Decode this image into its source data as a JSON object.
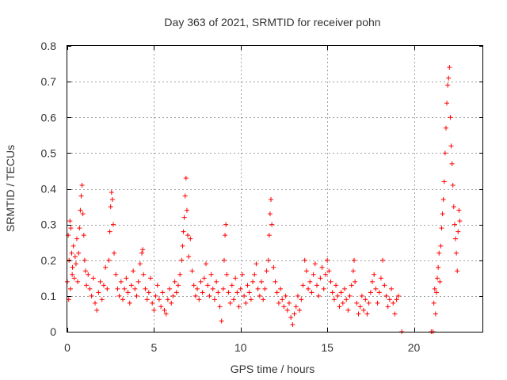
{
  "chart_data": {
    "type": "scatter",
    "title": "Day 363 of 2021, SRMTID for receiver pohn",
    "xlabel": "GPS time / hours",
    "ylabel": "SRMTID / TECUs",
    "xlim": [
      0,
      24
    ],
    "ylim": [
      0,
      0.8
    ],
    "x_ticks": [
      0,
      5,
      10,
      15,
      20
    ],
    "y_ticks": [
      0,
      0.1,
      0.2,
      0.3,
      0.4,
      0.5,
      0.6,
      0.7,
      0.8
    ],
    "x_tick_labels": [
      "0",
      "5",
      "10",
      "15",
      "20"
    ],
    "y_tick_labels": [
      "0",
      "0.1",
      "0.2",
      "0.3",
      "0.4",
      "0.5",
      "0.6",
      "0.7",
      "0.8"
    ],
    "grid": true,
    "marker": "+",
    "color": "#ff0000",
    "series": [
      {
        "name": "SRMTID",
        "points": [
          [
            0.0,
            0.14
          ],
          [
            0.05,
            0.27
          ],
          [
            0.08,
            0.09
          ],
          [
            0.1,
            0.2
          ],
          [
            0.15,
            0.31
          ],
          [
            0.18,
            0.12
          ],
          [
            0.2,
            0.29
          ],
          [
            0.25,
            0.22
          ],
          [
            0.28,
            0.16
          ],
          [
            0.3,
            0.18
          ],
          [
            0.35,
            0.24
          ],
          [
            0.4,
            0.15
          ],
          [
            0.45,
            0.21
          ],
          [
            0.5,
            0.19
          ],
          [
            0.55,
            0.26
          ],
          [
            0.6,
            0.14
          ],
          [
            0.65,
            0.22
          ],
          [
            0.7,
            0.29
          ],
          [
            0.75,
            0.34
          ],
          [
            0.8,
            0.38
          ],
          [
            0.85,
            0.41
          ],
          [
            0.9,
            0.33
          ],
          [
            0.95,
            0.27
          ],
          [
            1.0,
            0.2
          ],
          [
            1.05,
            0.17
          ],
          [
            1.1,
            0.13
          ],
          [
            1.2,
            0.16
          ],
          [
            1.3,
            0.12
          ],
          [
            1.4,
            0.1
          ],
          [
            1.5,
            0.15
          ],
          [
            1.6,
            0.08
          ],
          [
            1.7,
            0.06
          ],
          [
            1.8,
            0.11
          ],
          [
            1.9,
            0.14
          ],
          [
            2.0,
            0.09
          ],
          [
            2.1,
            0.13
          ],
          [
            2.2,
            0.18
          ],
          [
            2.3,
            0.12
          ],
          [
            2.4,
            0.2
          ],
          [
            2.45,
            0.28
          ],
          [
            2.5,
            0.35
          ],
          [
            2.55,
            0.39
          ],
          [
            2.6,
            0.37
          ],
          [
            2.65,
            0.3
          ],
          [
            2.7,
            0.22
          ],
          [
            2.8,
            0.16
          ],
          [
            2.9,
            0.12
          ],
          [
            3.0,
            0.1
          ],
          [
            3.1,
            0.14
          ],
          [
            3.2,
            0.09
          ],
          [
            3.3,
            0.12
          ],
          [
            3.4,
            0.15
          ],
          [
            3.5,
            0.11
          ],
          [
            3.6,
            0.08
          ],
          [
            3.7,
            0.13
          ],
          [
            3.8,
            0.17
          ],
          [
            3.9,
            0.12
          ],
          [
            4.0,
            0.1
          ],
          [
            4.1,
            0.14
          ],
          [
            4.2,
            0.19
          ],
          [
            4.3,
            0.22
          ],
          [
            4.35,
            0.23
          ],
          [
            4.4,
            0.16
          ],
          [
            4.5,
            0.12
          ],
          [
            4.6,
            0.09
          ],
          [
            4.7,
            0.11
          ],
          [
            4.8,
            0.15
          ],
          [
            4.9,
            0.08
          ],
          [
            5.0,
            0.06
          ],
          [
            5.1,
            0.1
          ],
          [
            5.2,
            0.13
          ],
          [
            5.3,
            0.09
          ],
          [
            5.4,
            0.07
          ],
          [
            5.5,
            0.11
          ],
          [
            5.6,
            0.06
          ],
          [
            5.7,
            0.05
          ],
          [
            5.8,
            0.09
          ],
          [
            5.9,
            0.12
          ],
          [
            6.0,
            0.08
          ],
          [
            6.1,
            0.1
          ],
          [
            6.2,
            0.14
          ],
          [
            6.3,
            0.11
          ],
          [
            6.4,
            0.13
          ],
          [
            6.5,
            0.16
          ],
          [
            6.6,
            0.2
          ],
          [
            6.65,
            0.24
          ],
          [
            6.7,
            0.28
          ],
          [
            6.75,
            0.32
          ],
          [
            6.8,
            0.38
          ],
          [
            6.85,
            0.43
          ],
          [
            6.9,
            0.34
          ],
          [
            6.95,
            0.27
          ],
          [
            7.0,
            0.21
          ],
          [
            7.1,
            0.26
          ],
          [
            7.2,
            0.17
          ],
          [
            7.3,
            0.13
          ],
          [
            7.4,
            0.1
          ],
          [
            7.5,
            0.12
          ],
          [
            7.6,
            0.09
          ],
          [
            7.7,
            0.14
          ],
          [
            7.8,
            0.11
          ],
          [
            7.9,
            0.15
          ],
          [
            8.0,
            0.19
          ],
          [
            8.1,
            0.13
          ],
          [
            8.2,
            0.1
          ],
          [
            8.3,
            0.16
          ],
          [
            8.4,
            0.12
          ],
          [
            8.5,
            0.09
          ],
          [
            8.6,
            0.14
          ],
          [
            8.7,
            0.11
          ],
          [
            8.8,
            0.07
          ],
          [
            8.9,
            0.03
          ],
          [
            9.0,
            0.12
          ],
          [
            9.05,
            0.2
          ],
          [
            9.1,
            0.27
          ],
          [
            9.15,
            0.3
          ],
          [
            9.2,
            0.16
          ],
          [
            9.3,
            0.11
          ],
          [
            9.4,
            0.08
          ],
          [
            9.5,
            0.13
          ],
          [
            9.6,
            0.09
          ],
          [
            9.7,
            0.15
          ],
          [
            9.8,
            0.11
          ],
          [
            9.9,
            0.07
          ],
          [
            10.0,
            0.12
          ],
          [
            10.1,
            0.16
          ],
          [
            10.2,
            0.1
          ],
          [
            10.3,
            0.08
          ],
          [
            10.4,
            0.13
          ],
          [
            10.5,
            0.11
          ],
          [
            10.6,
            0.09
          ],
          [
            10.7,
            0.14
          ],
          [
            10.8,
            0.16
          ],
          [
            10.9,
            0.19
          ],
          [
            11.0,
            0.12
          ],
          [
            11.1,
            0.1
          ],
          [
            11.2,
            0.14
          ],
          [
            11.3,
            0.09
          ],
          [
            11.4,
            0.12
          ],
          [
            11.5,
            0.17
          ],
          [
            11.6,
            0.2
          ],
          [
            11.65,
            0.27
          ],
          [
            11.7,
            0.33
          ],
          [
            11.75,
            0.37
          ],
          [
            11.8,
            0.3
          ],
          [
            11.9,
            0.18
          ],
          [
            12.0,
            0.14
          ],
          [
            12.1,
            0.11
          ],
          [
            12.2,
            0.08
          ],
          [
            12.3,
            0.12
          ],
          [
            12.4,
            0.09
          ],
          [
            12.5,
            0.07
          ],
          [
            12.6,
            0.1
          ],
          [
            12.7,
            0.06
          ],
          [
            12.8,
            0.08
          ],
          [
            12.9,
            0.04
          ],
          [
            13.0,
            0.02
          ],
          [
            13.1,
            0.05
          ],
          [
            13.2,
            0.07
          ],
          [
            13.3,
            0.1
          ],
          [
            13.4,
            0.06
          ],
          [
            13.5,
            0.09
          ],
          [
            13.6,
            0.13
          ],
          [
            13.7,
            0.2
          ],
          [
            13.8,
            0.17
          ],
          [
            13.9,
            0.12
          ],
          [
            14.0,
            0.14
          ],
          [
            14.1,
            0.11
          ],
          [
            14.2,
            0.16
          ],
          [
            14.3,
            0.19
          ],
          [
            14.4,
            0.13
          ],
          [
            14.5,
            0.1
          ],
          [
            14.6,
            0.15
          ],
          [
            14.7,
            0.18
          ],
          [
            14.8,
            0.12
          ],
          [
            14.9,
            0.16
          ],
          [
            15.0,
            0.2
          ],
          [
            15.1,
            0.17
          ],
          [
            15.2,
            0.14
          ],
          [
            15.3,
            0.11
          ],
          [
            15.4,
            0.09
          ],
          [
            15.5,
            0.13
          ],
          [
            15.6,
            0.1
          ],
          [
            15.7,
            0.07
          ],
          [
            15.8,
            0.11
          ],
          [
            15.9,
            0.08
          ],
          [
            16.0,
            0.12
          ],
          [
            16.1,
            0.09
          ],
          [
            16.2,
            0.06
          ],
          [
            16.3,
            0.1
          ],
          [
            16.4,
            0.13
          ],
          [
            16.5,
            0.17
          ],
          [
            16.55,
            0.2
          ],
          [
            16.6,
            0.14
          ],
          [
            16.7,
            0.08
          ],
          [
            16.8,
            0.05
          ],
          [
            16.9,
            0.07
          ],
          [
            17.0,
            0.1
          ],
          [
            17.1,
            0.06
          ],
          [
            17.2,
            0.09
          ],
          [
            17.3,
            0.05
          ],
          [
            17.4,
            0.08
          ],
          [
            17.5,
            0.11
          ],
          [
            17.6,
            0.14
          ],
          [
            17.7,
            0.16
          ],
          [
            17.8,
            0.12
          ],
          [
            17.9,
            0.08
          ],
          [
            18.0,
            0.11
          ],
          [
            18.1,
            0.15
          ],
          [
            18.2,
            0.2
          ],
          [
            18.3,
            0.13
          ],
          [
            18.4,
            0.1
          ],
          [
            18.5,
            0.07
          ],
          [
            18.6,
            0.09
          ],
          [
            18.7,
            0.12
          ],
          [
            18.8,
            0.08
          ],
          [
            18.9,
            0.05
          ],
          [
            19.0,
            0.09
          ],
          [
            19.1,
            0.1
          ],
          [
            19.3,
            0.0
          ],
          [
            21.0,
            0.0
          ],
          [
            21.1,
            0.0
          ],
          [
            21.15,
            0.08
          ],
          [
            21.2,
            0.12
          ],
          [
            21.25,
            0.05
          ],
          [
            21.3,
            0.11
          ],
          [
            21.35,
            0.15
          ],
          [
            21.4,
            0.18
          ],
          [
            21.45,
            0.22
          ],
          [
            21.5,
            0.14
          ],
          [
            21.55,
            0.24
          ],
          [
            21.6,
            0.29
          ],
          [
            21.65,
            0.33
          ],
          [
            21.7,
            0.37
          ],
          [
            21.75,
            0.42
          ],
          [
            21.8,
            0.5
          ],
          [
            21.85,
            0.57
          ],
          [
            21.9,
            0.64
          ],
          [
            21.95,
            0.69
          ],
          [
            22.0,
            0.71
          ],
          [
            22.05,
            0.74
          ],
          [
            22.1,
            0.6
          ],
          [
            22.15,
            0.52
          ],
          [
            22.2,
            0.47
          ],
          [
            22.25,
            0.41
          ],
          [
            22.3,
            0.35
          ],
          [
            22.35,
            0.3
          ],
          [
            22.4,
            0.26
          ],
          [
            22.45,
            0.22
          ],
          [
            22.5,
            0.17
          ],
          [
            22.55,
            0.28
          ],
          [
            22.6,
            0.34
          ],
          [
            22.65,
            0.31
          ]
        ]
      }
    ]
  }
}
